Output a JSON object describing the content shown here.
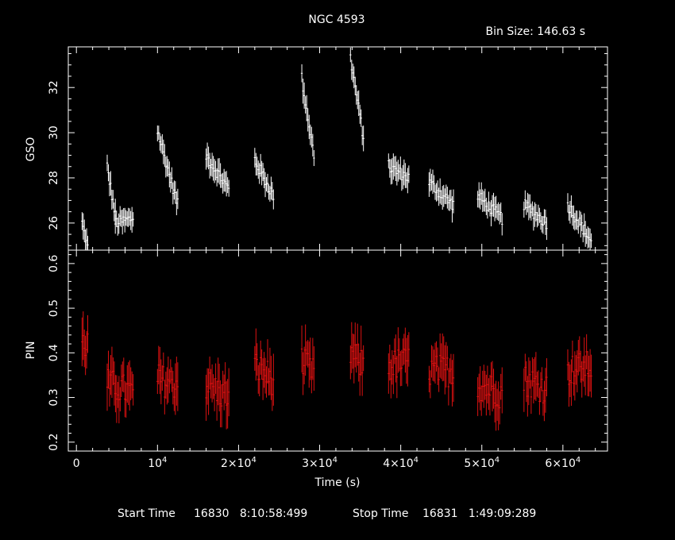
{
  "header": {
    "title": "NGC 4593",
    "bin_size": "Bin Size:  146.63  s"
  },
  "footer": {
    "start_label": "Start Time",
    "start_value": "16830   8:10:58:499",
    "stop_label": "Stop Time",
    "stop_value": "16831   1:49:09:289"
  },
  "chart_data": [
    {
      "type": "scatter",
      "panel": "top",
      "ylabel": "GSO",
      "ylim": [
        24.8,
        33.8
      ],
      "yticks": [
        26,
        28,
        30,
        32
      ],
      "xlim": [
        -1000,
        65500
      ],
      "color": "#ffffff",
      "segments": [
        {
          "x": [
            700,
            1400
          ],
          "y": [
            26.0,
            24.9
          ]
        },
        {
          "x": [
            3800,
            4800
          ],
          "y": [
            28.5,
            26.3
          ]
        },
        {
          "x": [
            4800,
            7000
          ],
          "y": [
            26.0,
            26.2
          ]
        },
        {
          "x": [
            10000,
            12500
          ],
          "y": [
            30.1,
            26.8
          ]
        },
        {
          "x": [
            16000,
            18800
          ],
          "y": [
            29.0,
            27.5
          ]
        },
        {
          "x": [
            22000,
            24300
          ],
          "y": [
            28.8,
            27.2
          ]
        },
        {
          "x": [
            27800,
            29300
          ],
          "y": [
            32.4,
            29.0
          ]
        },
        {
          "x": [
            33800,
            35400
          ],
          "y": [
            33.3,
            29.8
          ]
        },
        {
          "x": [
            38500,
            41000
          ],
          "y": [
            28.5,
            28.0
          ]
        },
        {
          "x": [
            43500,
            46500
          ],
          "y": [
            27.8,
            26.8
          ]
        },
        {
          "x": [
            49500,
            52500
          ],
          "y": [
            27.2,
            26.2
          ]
        },
        {
          "x": [
            55200,
            58000
          ],
          "y": [
            26.8,
            26.0
          ]
        },
        {
          "x": [
            60600,
            63500
          ],
          "y": [
            26.8,
            25.2
          ]
        }
      ]
    },
    {
      "type": "scatter",
      "panel": "bottom",
      "ylabel": "PIN",
      "xlabel": "Time (s)",
      "ylim": [
        0.18,
        0.63
      ],
      "yticks": [
        0.2,
        0.3,
        0.4,
        0.5,
        0.6
      ],
      "xlim": [
        -1000,
        65500
      ],
      "xticks": [
        {
          "value": 0,
          "label": "0",
          "exp": ""
        },
        {
          "value": 10000,
          "label": "10",
          "exp": "4"
        },
        {
          "value": 20000,
          "label": "2×10",
          "exp": "4"
        },
        {
          "value": 30000,
          "label": "3×10",
          "exp": "4"
        },
        {
          "value": 40000,
          "label": "4×10",
          "exp": "4"
        },
        {
          "value": 50000,
          "label": "5×10",
          "exp": "4"
        },
        {
          "value": 60000,
          "label": "6×10",
          "exp": "4"
        }
      ],
      "color": "#dd1111",
      "segments": [
        {
          "x": [
            700,
            1400
          ],
          "y": [
            0.42,
            0.42
          ]
        },
        {
          "x": [
            3800,
            7000
          ],
          "y": [
            0.33,
            0.31
          ]
        },
        {
          "x": [
            10000,
            12500
          ],
          "y": [
            0.34,
            0.33
          ]
        },
        {
          "x": [
            16000,
            18800
          ],
          "y": [
            0.33,
            0.3
          ]
        },
        {
          "x": [
            22000,
            24300
          ],
          "y": [
            0.37,
            0.34
          ]
        },
        {
          "x": [
            27800,
            29300
          ],
          "y": [
            0.38,
            0.35
          ]
        },
        {
          "x": [
            33800,
            35400
          ],
          "y": [
            0.4,
            0.37
          ]
        },
        {
          "x": [
            38500,
            41000
          ],
          "y": [
            0.37,
            0.38
          ]
        },
        {
          "x": [
            43500,
            46500
          ],
          "y": [
            0.36,
            0.36
          ]
        },
        {
          "x": [
            49500,
            52500
          ],
          "y": [
            0.33,
            0.31
          ]
        },
        {
          "x": [
            55200,
            58000
          ],
          "y": [
            0.34,
            0.32
          ]
        },
        {
          "x": [
            60600,
            63500
          ],
          "y": [
            0.36,
            0.37
          ]
        }
      ]
    }
  ]
}
